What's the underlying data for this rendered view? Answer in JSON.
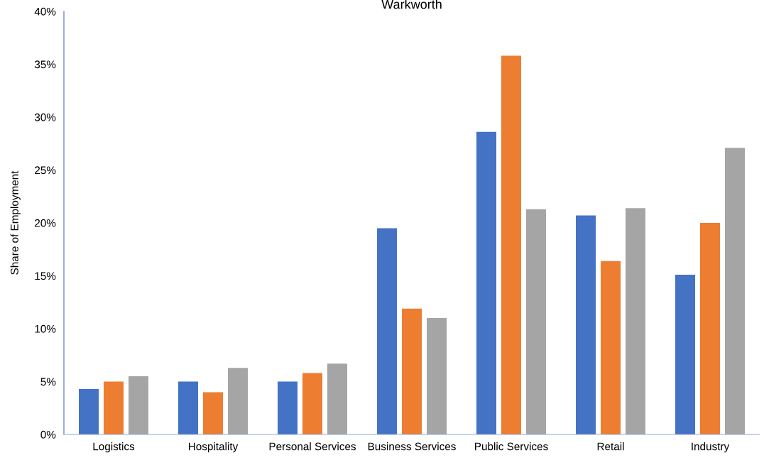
{
  "chart_data": {
    "type": "bar",
    "title": "Warkworth",
    "ylabel": "Share of Employment",
    "categories": [
      "Logistics",
      "Hospitality",
      "Personal Services",
      "Business Services",
      "Public Services",
      "Retail",
      "Industry"
    ],
    "series": [
      {
        "color": "#4472c4",
        "values": [
          4.3,
          5.0,
          5.0,
          19.5,
          28.6,
          20.7,
          15.1
        ]
      },
      {
        "color": "#ed7d31",
        "values": [
          5.0,
          4.0,
          5.8,
          11.9,
          35.8,
          16.4,
          20.0
        ]
      },
      {
        "color": "#a5a5a5",
        "values": [
          5.5,
          6.3,
          6.7,
          11.0,
          21.3,
          21.4,
          27.1
        ]
      }
    ],
    "ylim": [
      0,
      40
    ],
    "yticks": [
      {
        "value": 0,
        "label": "0%"
      },
      {
        "value": 5,
        "label": "5%"
      },
      {
        "value": 10,
        "label": "10%"
      },
      {
        "value": 15,
        "label": "15%"
      },
      {
        "value": 20,
        "label": "20%"
      },
      {
        "value": 25,
        "label": "25%"
      },
      {
        "value": 30,
        "label": "30%"
      },
      {
        "value": 35,
        "label": "35%"
      },
      {
        "value": 40,
        "label": "40%"
      }
    ],
    "grid": false,
    "legend": false
  }
}
